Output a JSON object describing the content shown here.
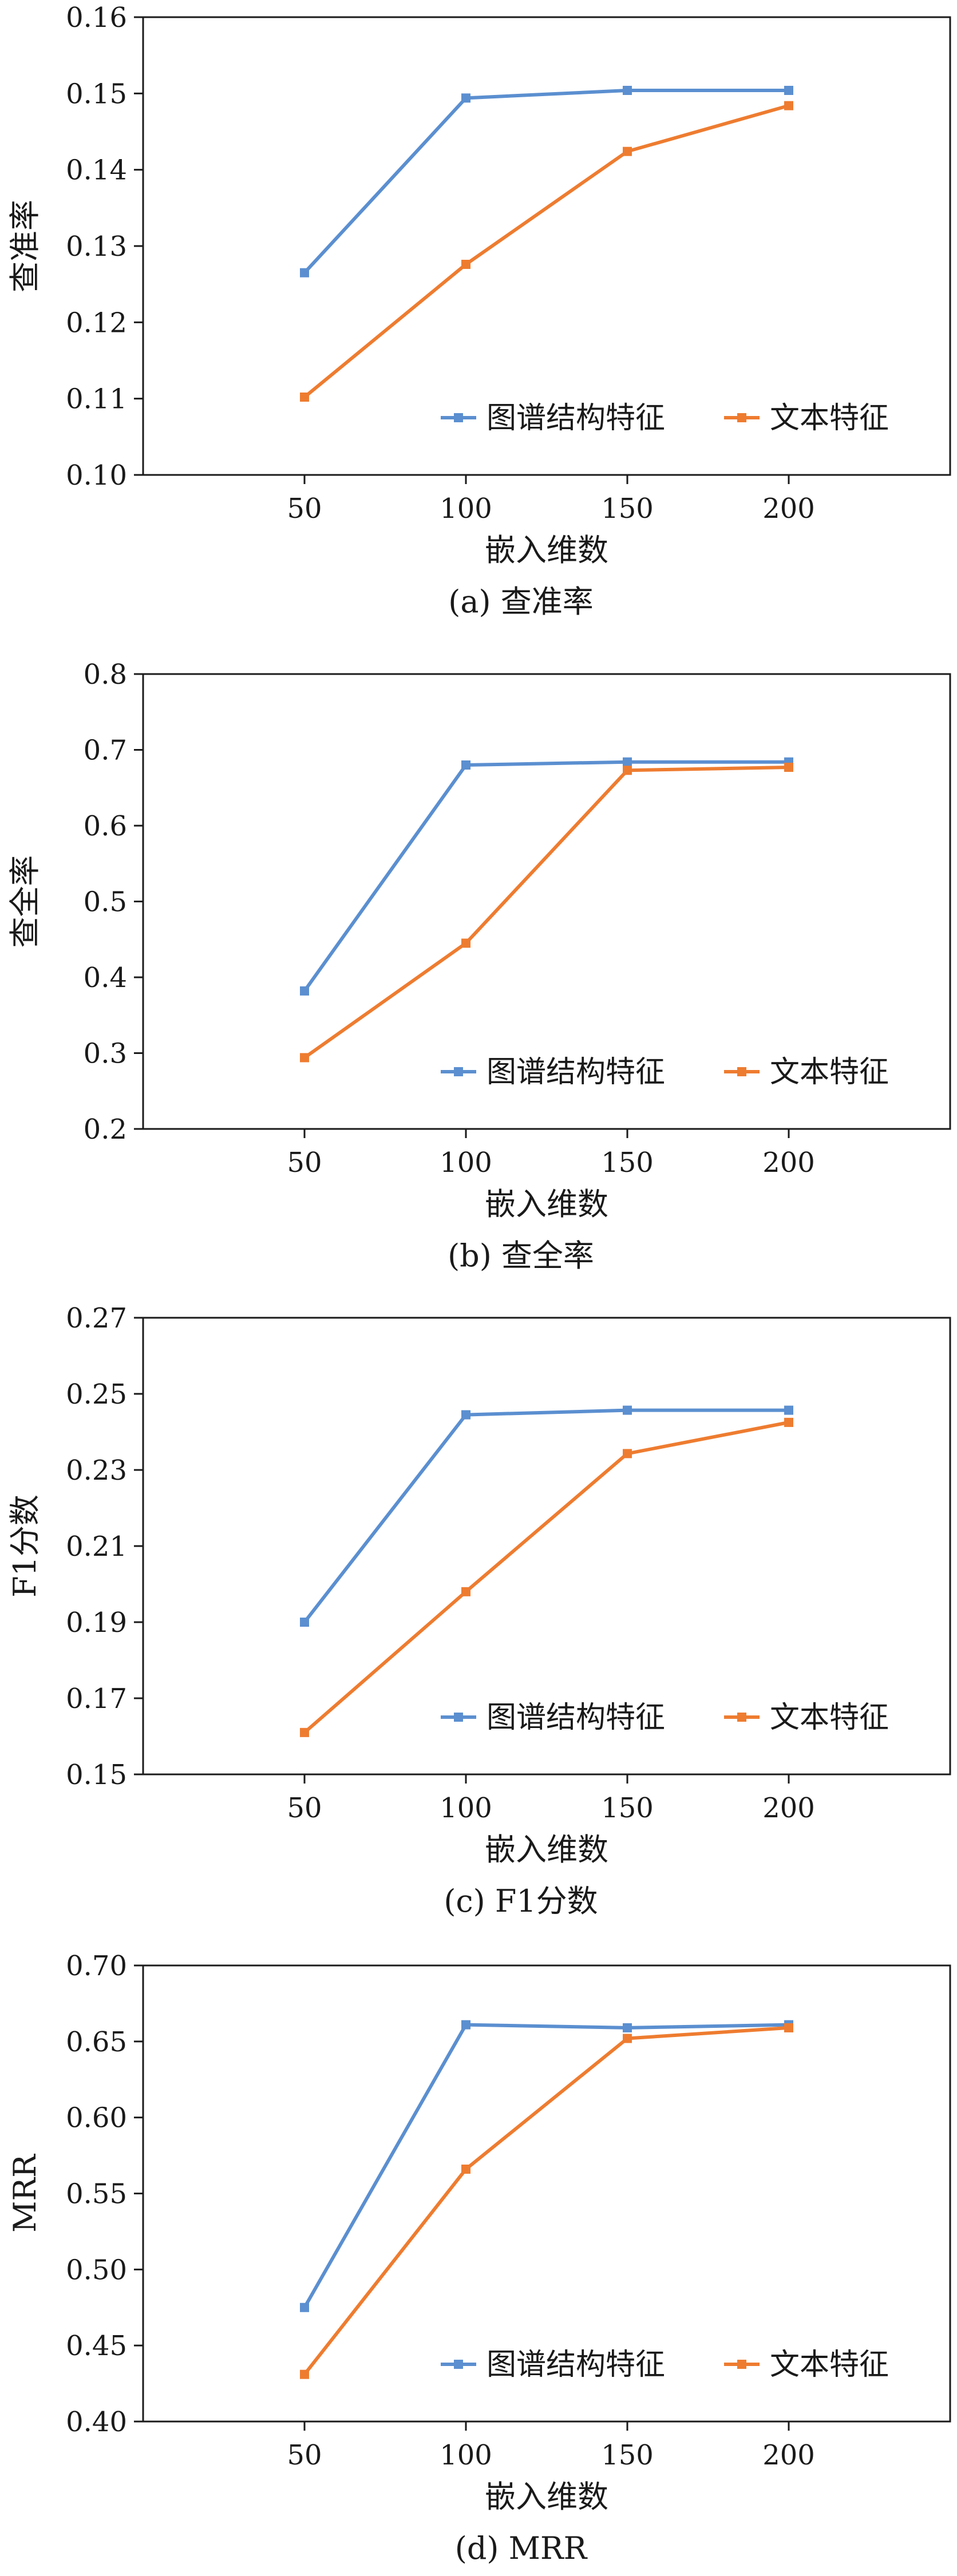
{
  "colors": {
    "series_graph": "#5b8fd0",
    "series_text": "#ee7c30",
    "axis": "#1a1a1a",
    "background": "#ffffff"
  },
  "chart_data": [
    {
      "type": "line",
      "caption": "(a) 查准率",
      "xlabel": "嵌入维数",
      "ylabel": "查准率",
      "x": [
        50,
        100,
        150,
        200
      ],
      "x_ticks": [
        "50",
        "100",
        "150",
        "200"
      ],
      "xlim": [
        0,
        250
      ],
      "ylim": [
        0.1,
        0.16
      ],
      "y_ticks": [
        "0.10",
        "0.11",
        "0.12",
        "0.13",
        "0.14",
        "0.15",
        "0.16"
      ],
      "legend_position": "bottom-right",
      "series": [
        {
          "name": "图谱结构特征",
          "color": "#5b8fd0",
          "values": [
            0.1265,
            0.1494,
            0.1504,
            0.1504
          ]
        },
        {
          "name": "文本特征",
          "color": "#ee7c30",
          "values": [
            0.1102,
            0.1276,
            0.1424,
            0.1484
          ]
        }
      ]
    },
    {
      "type": "line",
      "caption": "(b) 查全率",
      "xlabel": "嵌入维数",
      "ylabel": "查全率",
      "x": [
        50,
        100,
        150,
        200
      ],
      "x_ticks": [
        "50",
        "100",
        "150",
        "200"
      ],
      "xlim": [
        0,
        250
      ],
      "ylim": [
        0.2,
        0.8
      ],
      "y_ticks": [
        "0.2",
        "0.3",
        "0.4",
        "0.5",
        "0.6",
        "0.7",
        "0.8"
      ],
      "legend_position": "bottom-right",
      "series": [
        {
          "name": "图谱结构特征",
          "color": "#5b8fd0",
          "values": [
            0.382,
            0.68,
            0.684,
            0.684
          ]
        },
        {
          "name": "文本特征",
          "color": "#ee7c30",
          "values": [
            0.294,
            0.445,
            0.673,
            0.677
          ]
        }
      ]
    },
    {
      "type": "line",
      "caption": "(c) F1分数",
      "xlabel": "嵌入维数",
      "ylabel": "F1分数",
      "x": [
        50,
        100,
        150,
        200
      ],
      "x_ticks": [
        "50",
        "100",
        "150",
        "200"
      ],
      "xlim": [
        0,
        250
      ],
      "ylim": [
        0.15,
        0.27
      ],
      "y_ticks": [
        "0.15",
        "0.17",
        "0.19",
        "0.21",
        "0.23",
        "0.25",
        "0.27"
      ],
      "legend_position": "bottom-right",
      "series": [
        {
          "name": "图谱结构特征",
          "color": "#5b8fd0",
          "values": [
            0.19,
            0.2445,
            0.2457,
            0.2457
          ]
        },
        {
          "name": "文本特征",
          "color": "#ee7c30",
          "values": [
            0.161,
            0.198,
            0.2343,
            0.2425
          ]
        }
      ]
    },
    {
      "type": "line",
      "caption": "(d) MRR",
      "xlabel": "嵌入维数",
      "ylabel": "MRR",
      "x": [
        50,
        100,
        150,
        200
      ],
      "x_ticks": [
        "50",
        "100",
        "150",
        "200"
      ],
      "xlim": [
        0,
        250
      ],
      "ylim": [
        0.4,
        0.7
      ],
      "y_ticks": [
        "0.40",
        "0.45",
        "0.50",
        "0.55",
        "0.60",
        "0.65",
        "0.70"
      ],
      "legend_position": "bottom-right",
      "series": [
        {
          "name": "图谱结构特征",
          "color": "#5b8fd0",
          "values": [
            0.475,
            0.661,
            0.659,
            0.661
          ]
        },
        {
          "name": "文本特征",
          "color": "#ee7c30",
          "values": [
            0.431,
            0.566,
            0.652,
            0.659
          ]
        }
      ]
    }
  ]
}
